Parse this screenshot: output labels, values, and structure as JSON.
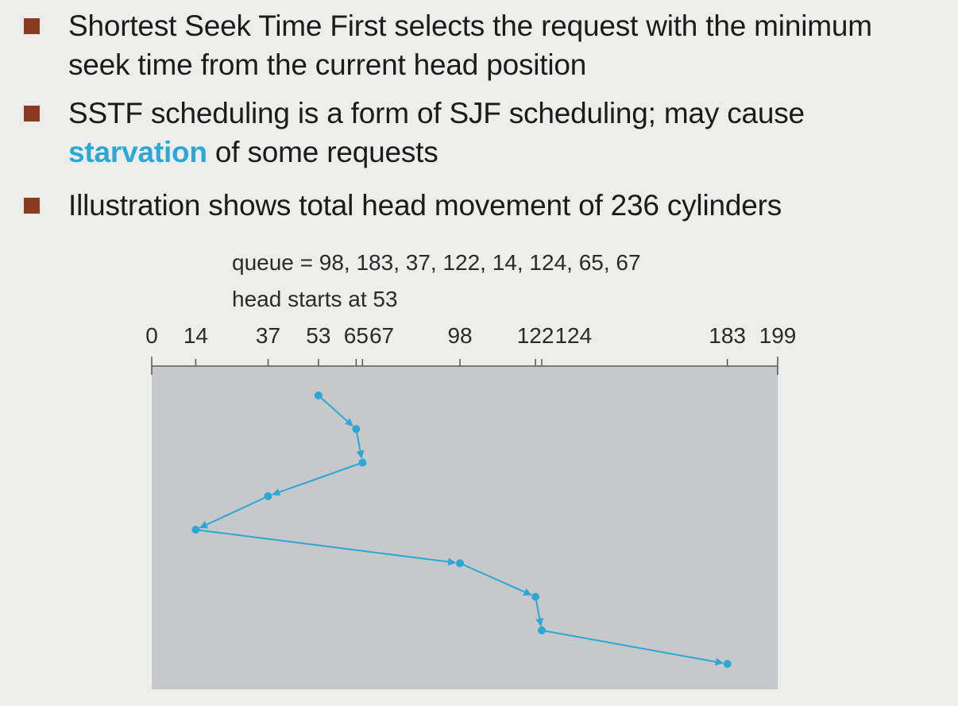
{
  "bullets": [
    {
      "text_line1": "Shortest Seek Time First selects the request with the minimum",
      "text_line2": "seek time from the current head position"
    },
    {
      "text_line1": "SSTF scheduling is a form of SJF scheduling; may cause",
      "highlight": "starvation",
      "text_line2_rest": " of some requests"
    },
    {
      "text_line1": "Illustration shows total head movement of 236 cylinders"
    }
  ],
  "diagram": {
    "queue_label": "queue = 98, 183, 37, 122, 14, 124, 65, 67",
    "head_label": "head starts at 53",
    "axis_ticks": [
      "0",
      "14",
      "37",
      "53",
      "65",
      "67",
      "98",
      "122",
      "124",
      "183",
      "199"
    ],
    "axis_min": 0,
    "axis_max": 199,
    "visit_order": [
      53,
      65,
      67,
      37,
      14,
      98,
      122,
      124,
      183
    ],
    "colors": {
      "path": "#2ba8d6",
      "panel": "#c6c8c9",
      "bullet": "#8a3b20"
    }
  }
}
